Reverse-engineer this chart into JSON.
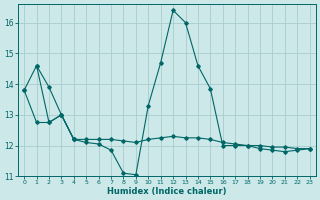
{
  "xlabel": "Humidex (Indice chaleur)",
  "x": [
    0,
    1,
    2,
    3,
    4,
    5,
    6,
    7,
    8,
    9,
    10,
    11,
    12,
    13,
    14,
    15,
    16,
    17,
    18,
    19,
    20,
    21,
    22,
    23
  ],
  "line1": [
    13.8,
    14.6,
    13.9,
    13.0,
    12.2,
    12.1,
    12.05,
    11.85,
    11.1,
    11.05,
    13.3,
    14.7,
    16.4,
    16.0,
    14.6,
    13.85,
    12.0,
    12.0,
    12.0,
    11.9,
    11.85,
    11.8,
    11.85,
    11.9
  ],
  "line2": [
    13.8,
    12.75,
    12.75,
    13.0,
    12.2,
    12.2,
    12.2,
    12.2,
    12.15,
    12.1,
    12.2,
    12.25,
    12.3,
    12.25,
    12.25,
    12.2,
    12.1,
    12.05,
    12.0,
    12.0,
    11.95,
    11.95,
    11.9,
    11.9
  ],
  "line3_x": [
    1,
    2,
    3,
    4
  ],
  "line3_y": [
    14.6,
    12.75,
    13.0,
    12.2
  ],
  "ylim": [
    11,
    16.6
  ],
  "xlim": [
    -0.5,
    23.5
  ],
  "yticks": [
    11,
    12,
    13,
    14,
    15,
    16
  ],
  "xticks": [
    0,
    1,
    2,
    3,
    4,
    5,
    6,
    7,
    8,
    9,
    10,
    11,
    12,
    13,
    14,
    15,
    16,
    17,
    18,
    19,
    20,
    21,
    22,
    23
  ],
  "bg_color": "#cce8e8",
  "grid_color": "#aacccc",
  "line_color": "#006666"
}
